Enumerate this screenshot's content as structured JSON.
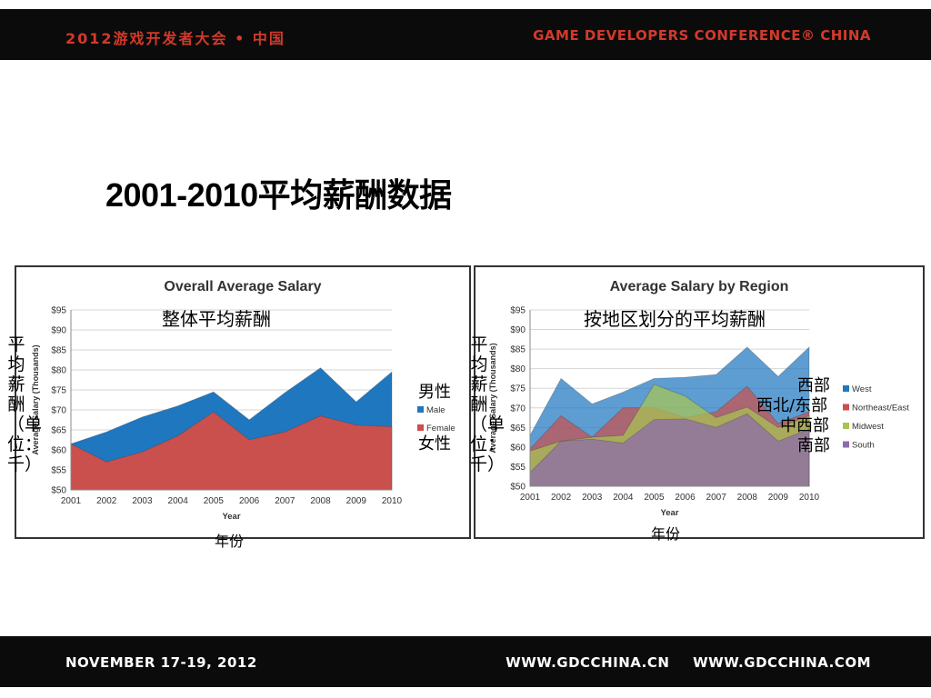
{
  "header": {
    "left_text": "2012游戏开发者大会 • 中国",
    "right_text": "GAME DEVELOPERS CONFERENCE® CHINA"
  },
  "footer": {
    "date_text": "NOVEMBER 17-19, 2012",
    "site_cn": "WWW.GDCCHINA.CN",
    "site_com": "WWW.GDCCHINA.COM"
  },
  "page_title": "2001-2010平均薪酬数据",
  "colors": {
    "bar": "#0b0b0b",
    "accent": "#d23a2a",
    "male": "#1f77c0",
    "female": "#c9504d",
    "west": "#1f77c0",
    "northeast_east": "#c9504d",
    "midwest": "#a7c552",
    "south": "#8c6bae"
  },
  "overlay_labels": {
    "chart1_title_cn": "整体平均薪酬",
    "chart2_title_cn": "按地区划分的平均薪酬",
    "ylabel_cn": "平均薪酬（单位：千）",
    "xlabel_cn": "年份",
    "male_cn": "男性",
    "female_cn": "女性",
    "west_cn": "西部",
    "northeast_east_cn": "西北/东部",
    "midwest_cn": "中西部",
    "south_cn": "南部"
  },
  "chart_data": [
    {
      "type": "area",
      "title": "Overall Average Salary",
      "xlabel": "Year",
      "ylabel": "Average Salary (Thousands)",
      "x": [
        "2001",
        "2002",
        "2003",
        "2004",
        "2005",
        "2006",
        "2007",
        "2008",
        "2009",
        "2010"
      ],
      "ylim": [
        50,
        95
      ],
      "yticks": [
        "$50",
        "$55",
        "$60",
        "$65",
        "$70",
        "$75",
        "$80",
        "$85",
        "$90",
        "$95"
      ],
      "grid": true,
      "legend": "right",
      "series": [
        {
          "name": "Male",
          "values": [
            61.5,
            64.5,
            68.2,
            71,
            74.5,
            67.5,
            74.3,
            80.5,
            72,
            79.5
          ]
        },
        {
          "name": "Female",
          "values": [
            61.5,
            57,
            59.5,
            63.5,
            69.5,
            62.5,
            64.5,
            68.5,
            66.2,
            65.8
          ]
        }
      ]
    },
    {
      "type": "area",
      "title": "Average Salary by Region",
      "xlabel": "Year",
      "ylabel": "Average Salary (Thousands)",
      "x": [
        "2001",
        "2002",
        "2003",
        "2004",
        "2005",
        "2006",
        "2007",
        "2008",
        "2009",
        "2010"
      ],
      "ylim": [
        50,
        95
      ],
      "yticks": [
        "$50",
        "$55",
        "$60",
        "$65",
        "$70",
        "$75",
        "$80",
        "$85",
        "$90",
        "$95"
      ],
      "grid": true,
      "legend": "right",
      "series": [
        {
          "name": "West",
          "values": [
            63,
            77.5,
            71,
            74,
            77.5,
            77.8,
            78.5,
            85.5,
            78,
            85.5
          ]
        },
        {
          "name": "Northeast/East",
          "values": [
            59.5,
            68,
            62.5,
            70,
            70,
            67.5,
            69,
            75.5,
            66,
            69
          ]
        },
        {
          "name": "Midwest",
          "values": [
            59,
            61.5,
            62.5,
            63,
            76,
            73,
            67.5,
            70.2,
            65,
            68
          ]
        },
        {
          "name": "South",
          "values": [
            53.5,
            61.5,
            62,
            61,
            67,
            67.2,
            65,
            68.5,
            61.5,
            64.5
          ]
        }
      ]
    }
  ]
}
